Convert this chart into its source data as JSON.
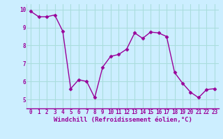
{
  "x": [
    0,
    1,
    2,
    3,
    4,
    5,
    6,
    7,
    8,
    9,
    10,
    11,
    12,
    13,
    14,
    15,
    16,
    17,
    18,
    19,
    20,
    21,
    22,
    23
  ],
  "y": [
    9.9,
    9.6,
    9.6,
    9.7,
    8.8,
    5.6,
    6.1,
    6.0,
    5.1,
    6.8,
    7.4,
    7.5,
    7.8,
    8.7,
    8.4,
    8.75,
    8.7,
    8.5,
    6.5,
    5.9,
    5.4,
    5.1,
    5.55,
    5.6
  ],
  "line_color": "#990099",
  "marker": "D",
  "marker_size": 2.5,
  "bg_color": "#cceeff",
  "grid_color": "#aadddd",
  "xlabel": "Windchill (Refroidissement éolien,°C)",
  "xlabel_color": "#990099",
  "tick_color": "#990099",
  "ylim": [
    4.5,
    10.3
  ],
  "xlim": [
    -0.5,
    23.5
  ],
  "yticks": [
    5,
    6,
    7,
    8,
    9,
    10
  ],
  "xticks": [
    0,
    1,
    2,
    3,
    4,
    5,
    6,
    7,
    8,
    9,
    10,
    11,
    12,
    13,
    14,
    15,
    16,
    17,
    18,
    19,
    20,
    21,
    22,
    23
  ],
  "tick_fontsize": 5.5,
  "xlabel_fontsize": 6.5,
  "linewidth": 1.0
}
